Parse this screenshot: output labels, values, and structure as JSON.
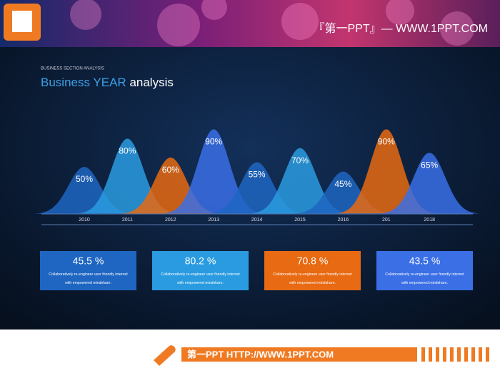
{
  "header": {
    "brand": "『第一PPT』— WWW.1PPT.COM"
  },
  "chart_data": {
    "type": "bell",
    "subtitle": "BUSINESS SECTION ANALYSIS",
    "title_highlight": "Business YEAR",
    "title": "analysis",
    "categories": [
      "2010",
      "2011",
      "2012",
      "2013",
      "2014",
      "2015",
      "2016",
      "201",
      "2018"
    ],
    "values": [
      50,
      80,
      60,
      90,
      55,
      70,
      45,
      90,
      65
    ],
    "value_labels": [
      "50%",
      "80%",
      "60%",
      "90%",
      "55%",
      "70%",
      "45%",
      "90%",
      "65%"
    ],
    "colors": [
      "#1f66c2",
      "#2a9be0",
      "#e86a12",
      "#3a6fe6",
      "#1f66c2",
      "#2a9be0",
      "#1f66c2",
      "#e86a12",
      "#3a6fe6"
    ]
  },
  "cards": [
    {
      "value": "45.5 %",
      "text": "Collaboratively re-engineer user friendly internet with empowered mindshare.",
      "color": "#1f66c2"
    },
    {
      "value": "80.2 %",
      "text": "Collaboratively re-engineer user friendly internet with empowered mindshare.",
      "color": "#2a9be0"
    },
    {
      "value": "70.8 %",
      "text": "Collaboratively re-engineer user friendly internet with empowered mindshare.",
      "color": "#e86a12"
    },
    {
      "value": "43.5 %",
      "text": "Collaboratively re-engineer user friendly internet with empowered mindshare.",
      "color": "#3a6fe6"
    }
  ],
  "footer": {
    "text": "第一PPT HTTP://WWW.1PPT.COM"
  }
}
